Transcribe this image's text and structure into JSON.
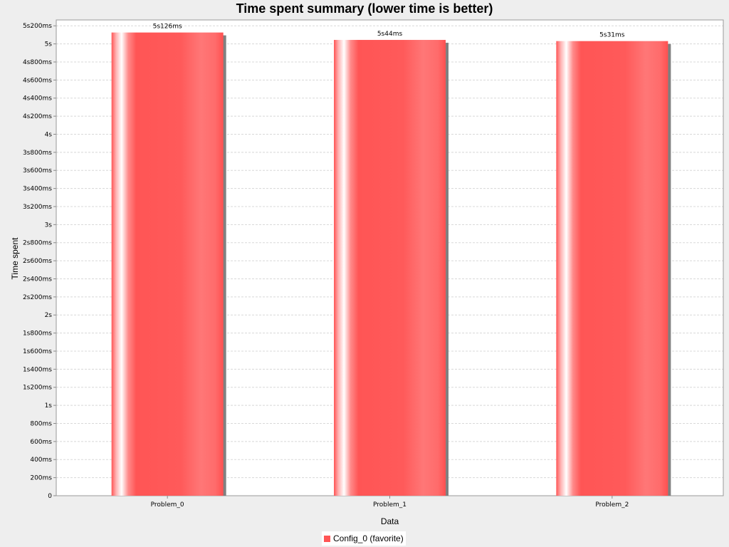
{
  "chart_data": {
    "type": "bar",
    "title": "Time spent summary (lower time is better)",
    "xlabel": "Data",
    "ylabel": "Time spent",
    "categories": [
      "Problem_0",
      "Problem_1",
      "Problem_2"
    ],
    "series": [
      {
        "name": "Config_0 (favorite)",
        "values": [
          5126,
          5044,
          5031
        ],
        "value_labels": [
          "5s126ms",
          "5s44ms",
          "5s31ms"
        ],
        "color": "#ff5555"
      }
    ],
    "ylim": [
      0,
      5200
    ],
    "yticks": [
      {
        "value": 0,
        "label": "0"
      },
      {
        "value": 200,
        "label": "200ms"
      },
      {
        "value": 400,
        "label": "400ms"
      },
      {
        "value": 600,
        "label": "600ms"
      },
      {
        "value": 800,
        "label": "800ms"
      },
      {
        "value": 1000,
        "label": "1s"
      },
      {
        "value": 1200,
        "label": "1s200ms"
      },
      {
        "value": 1400,
        "label": "1s400ms"
      },
      {
        "value": 1600,
        "label": "1s600ms"
      },
      {
        "value": 1800,
        "label": "1s800ms"
      },
      {
        "value": 2000,
        "label": "2s"
      },
      {
        "value": 2200,
        "label": "2s200ms"
      },
      {
        "value": 2400,
        "label": "2s400ms"
      },
      {
        "value": 2600,
        "label": "2s600ms"
      },
      {
        "value": 2800,
        "label": "2s800ms"
      },
      {
        "value": 3000,
        "label": "3s"
      },
      {
        "value": 3200,
        "label": "3s200ms"
      },
      {
        "value": 3400,
        "label": "3s400ms"
      },
      {
        "value": 3600,
        "label": "3s600ms"
      },
      {
        "value": 3800,
        "label": "3s800ms"
      },
      {
        "value": 4000,
        "label": "4s"
      },
      {
        "value": 4200,
        "label": "4s200ms"
      },
      {
        "value": 4400,
        "label": "4s400ms"
      },
      {
        "value": 4600,
        "label": "4s600ms"
      },
      {
        "value": 4800,
        "label": "4s800ms"
      },
      {
        "value": 5000,
        "label": "5s"
      },
      {
        "value": 5200,
        "label": "5s200ms"
      }
    ],
    "grid": true,
    "legend_position": "bottom-center"
  }
}
